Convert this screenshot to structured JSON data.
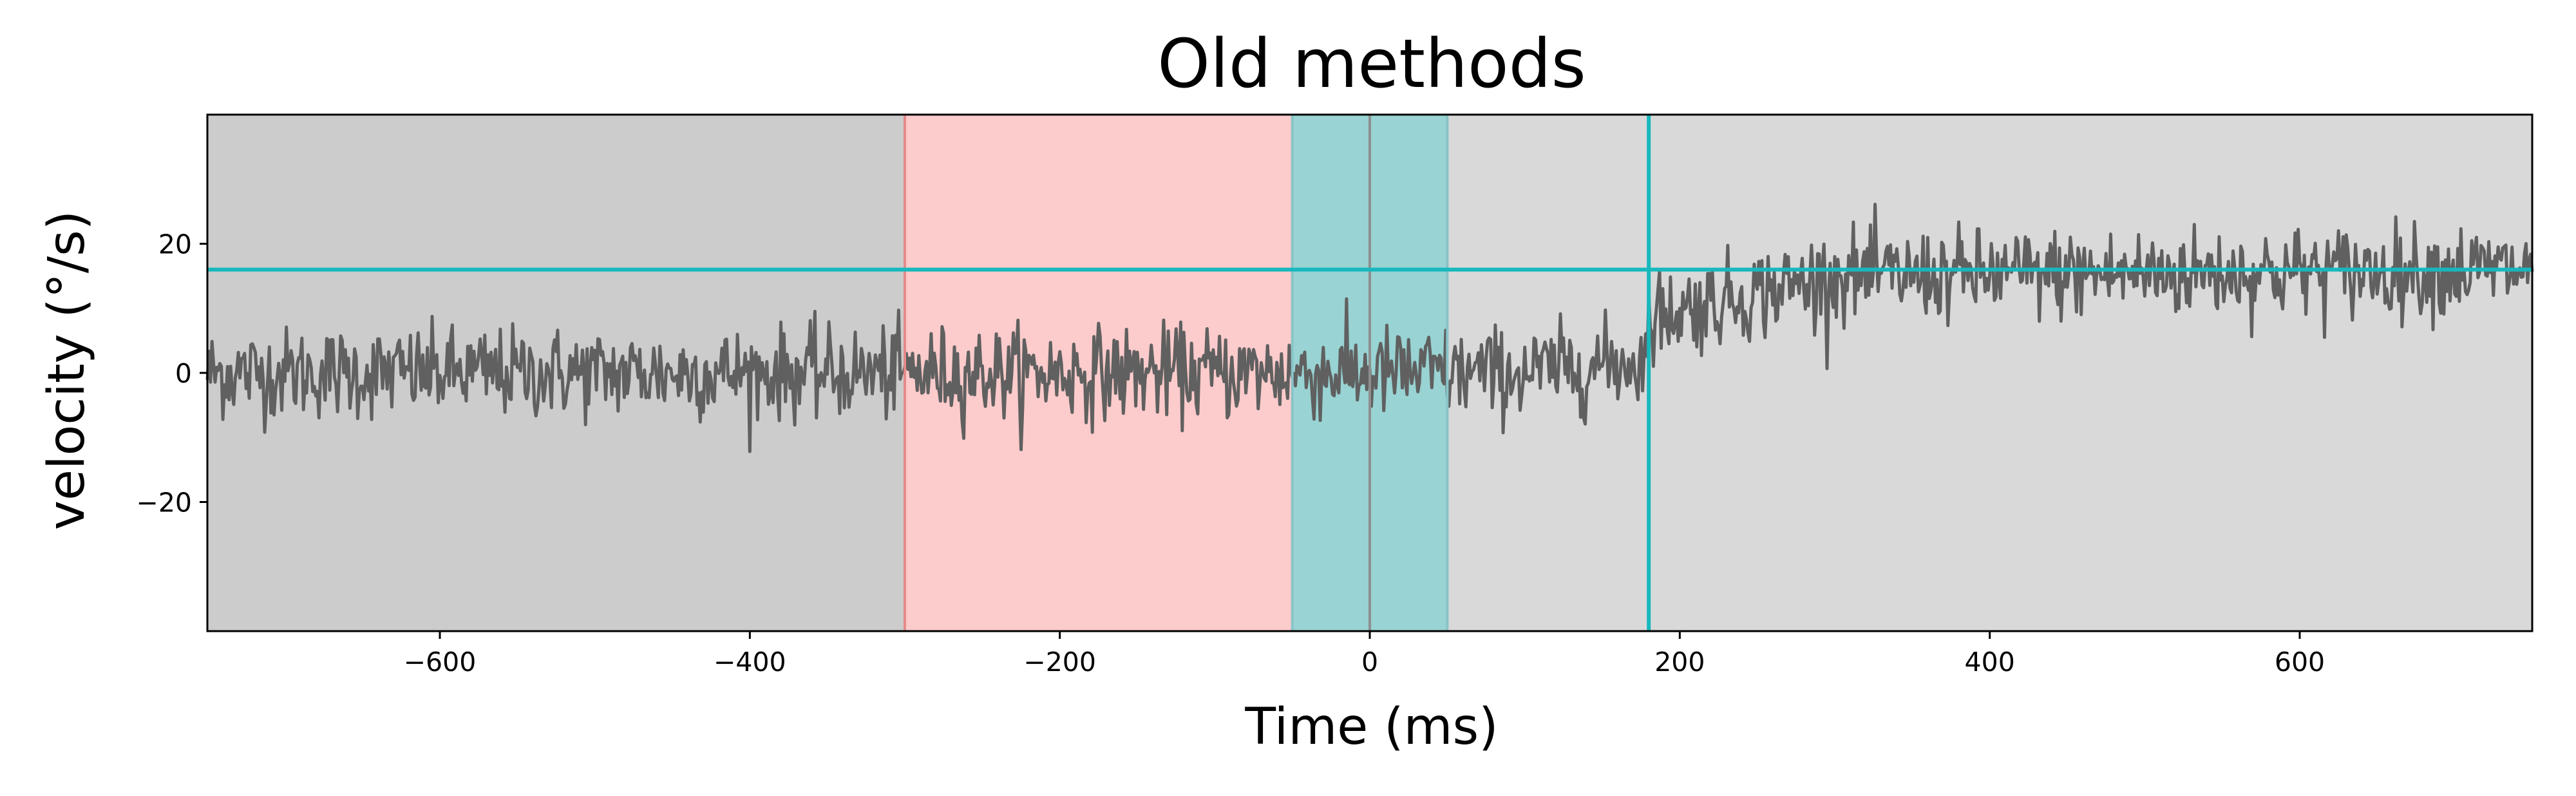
{
  "chart_data": {
    "type": "line",
    "title": "Old methods",
    "xlabel": "Time (ms)",
    "ylabel": "velocity (°/s)",
    "xlim": [
      -750,
      750
    ],
    "ylim": [
      -40,
      40
    ],
    "xticks": [
      -600,
      -400,
      -200,
      0,
      200,
      400,
      600
    ],
    "xtick_labels": [
      "−600",
      "−400",
      "−200",
      "0",
      "200",
      "400",
      "600"
    ],
    "yticks": [
      -20,
      0,
      20
    ],
    "ytick_labels": [
      "−20",
      "0",
      "20"
    ],
    "grid": false,
    "regions": [
      {
        "name": "baseline",
        "x": [
          -750,
          -300
        ],
        "color": "#cccccc"
      },
      {
        "name": "red window",
        "x": [
          -300,
          -50
        ],
        "color": "#fccbcb"
      },
      {
        "name": "cyan window",
        "x": [
          -50,
          50
        ],
        "color": "#99d3d3"
      },
      {
        "name": "post",
        "x": [
          50,
          750
        ],
        "color": "#d9d9d9"
      }
    ],
    "vertical_lines": [
      {
        "x": -300,
        "color": "#e58a8a"
      },
      {
        "x": -50,
        "color": "#88c4c8"
      },
      {
        "x": 0,
        "color": "#8e8e8e"
      },
      {
        "x": 50,
        "color": "#88c4c8"
      },
      {
        "x": 180,
        "color": "#17b8bd"
      }
    ],
    "horizontal_lines": [
      {
        "y": 16,
        "color": "#17b8bd"
      }
    ],
    "series": [
      {
        "color": "#606060",
        "noise_sd": 3.5,
        "mean_profile": [
          {
            "x": -750,
            "y": 0
          },
          {
            "x": 100,
            "y": 0
          },
          {
            "x": 180,
            "y": 2
          },
          {
            "x": 185,
            "y": 9
          },
          {
            "x": 300,
            "y": 15
          },
          {
            "x": 750,
            "y": 16
          }
        ]
      }
    ]
  }
}
